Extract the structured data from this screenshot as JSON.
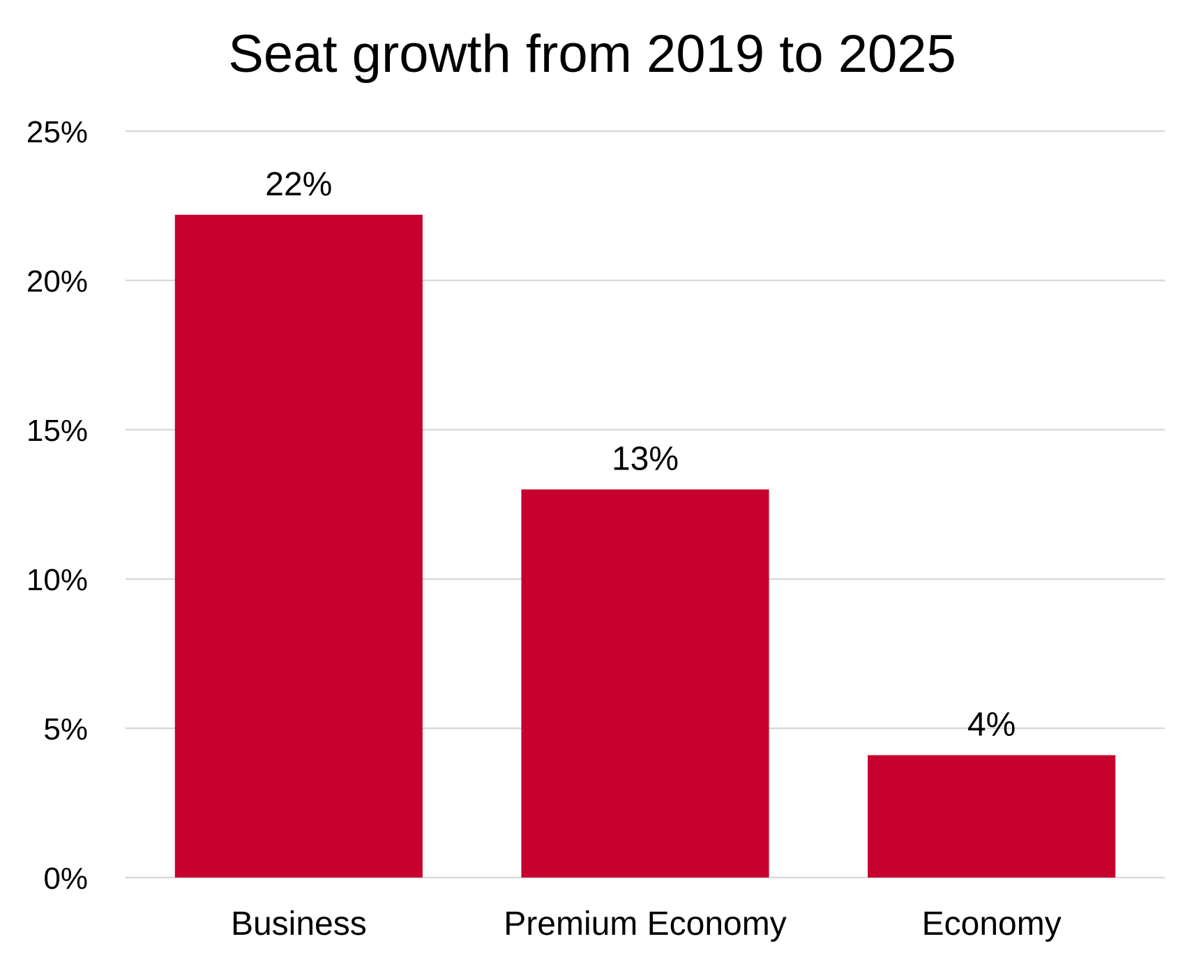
{
  "chart_data": {
    "type": "bar",
    "title": "Seat growth from 2019 to 2025",
    "xlabel": "",
    "ylabel": "",
    "categories": [
      "Business",
      "Premium Economy",
      "Economy"
    ],
    "values": [
      22.2,
      13.0,
      4.1
    ],
    "data_labels": [
      "22%",
      "13%",
      "4%"
    ],
    "ylim": [
      0,
      25
    ],
    "y_ticks": [
      0,
      5,
      10,
      15,
      20,
      25
    ],
    "y_tick_labels": [
      "0%",
      "5%",
      "10%",
      "15%",
      "20%",
      "25%"
    ],
    "grid": true,
    "legend": "none",
    "colors": {
      "bar": "#c8002e",
      "grid": "#d9d9d9",
      "text": "#000000"
    }
  }
}
